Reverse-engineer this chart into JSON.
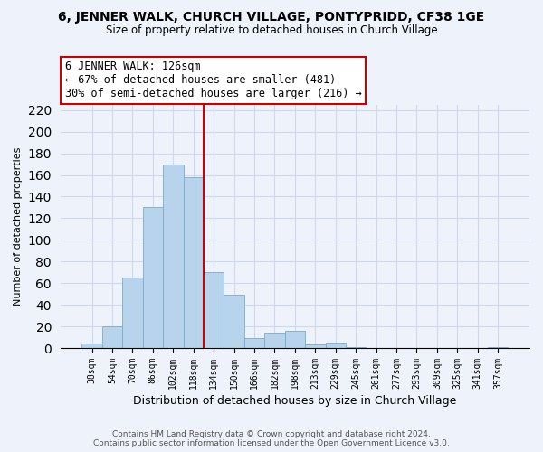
{
  "title": "6, JENNER WALK, CHURCH VILLAGE, PONTYPRIDD, CF38 1GE",
  "subtitle": "Size of property relative to detached houses in Church Village",
  "xlabel": "Distribution of detached houses by size in Church Village",
  "ylabel": "Number of detached properties",
  "bin_labels": [
    "38sqm",
    "54sqm",
    "70sqm",
    "86sqm",
    "102sqm",
    "118sqm",
    "134sqm",
    "150sqm",
    "166sqm",
    "182sqm",
    "198sqm",
    "213sqm",
    "229sqm",
    "245sqm",
    "261sqm",
    "277sqm",
    "293sqm",
    "309sqm",
    "325sqm",
    "341sqm",
    "357sqm"
  ],
  "bar_heights": [
    4,
    20,
    65,
    130,
    170,
    158,
    70,
    49,
    9,
    14,
    16,
    3,
    5,
    1,
    0,
    0,
    0,
    0,
    0,
    0,
    1
  ],
  "bar_color": "#b8d4ec",
  "bar_edge_color": "#7aabcc",
  "vline_color": "#cc0000",
  "annotation_text": "6 JENNER WALK: 126sqm\n← 67% of detached houses are smaller (481)\n30% of semi-detached houses are larger (216) →",
  "annotation_box_edgecolor": "#cc0000",
  "ylim": [
    0,
    225
  ],
  "yticks": [
    0,
    20,
    40,
    60,
    80,
    100,
    120,
    140,
    160,
    180,
    200,
    220
  ],
  "footer_line1": "Contains HM Land Registry data © Crown copyright and database right 2024.",
  "footer_line2": "Contains public sector information licensed under the Open Government Licence v3.0.",
  "background_color": "#eef2fa",
  "grid_color": "#d0d8ee"
}
